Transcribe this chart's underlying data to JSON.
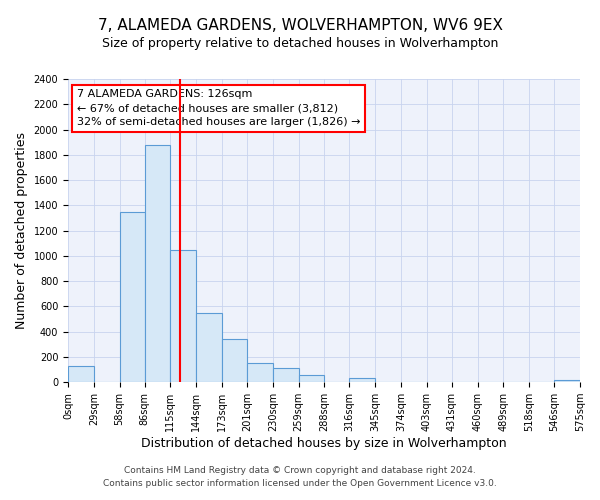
{
  "title": "7, ALAMEDA GARDENS, WOLVERHAMPTON, WV6 9EX",
  "subtitle": "Size of property relative to detached houses in Wolverhampton",
  "xlabel": "Distribution of detached houses by size in Wolverhampton",
  "ylabel": "Number of detached properties",
  "bin_edges": [
    0,
    29,
    58,
    86,
    115,
    144,
    173,
    201,
    230,
    259,
    288,
    316,
    345,
    374,
    403,
    431,
    460,
    489,
    518,
    546,
    575
  ],
  "bin_counts": [
    125,
    0,
    1350,
    1880,
    1050,
    550,
    340,
    155,
    110,
    60,
    0,
    30,
    0,
    0,
    0,
    0,
    0,
    0,
    0,
    20
  ],
  "bar_facecolor": "#d6e8f7",
  "bar_edgecolor": "#5b9bd5",
  "property_line_x": 126,
  "property_line_color": "red",
  "annotation_title": "7 ALAMEDA GARDENS: 126sqm",
  "annotation_line1": "← 67% of detached houses are smaller (3,812)",
  "annotation_line2": "32% of semi-detached houses are larger (1,826) →",
  "annotation_box_edgecolor": "red",
  "annotation_box_facecolor": "white",
  "tick_labels": [
    "0sqm",
    "29sqm",
    "58sqm",
    "86sqm",
    "115sqm",
    "144sqm",
    "173sqm",
    "201sqm",
    "230sqm",
    "259sqm",
    "288sqm",
    "316sqm",
    "345sqm",
    "374sqm",
    "403sqm",
    "431sqm",
    "460sqm",
    "489sqm",
    "518sqm",
    "546sqm",
    "575sqm"
  ],
  "ylim": [
    0,
    2400
  ],
  "yticks": [
    0,
    200,
    400,
    600,
    800,
    1000,
    1200,
    1400,
    1600,
    1800,
    2000,
    2200,
    2400
  ],
  "footer_line1": "Contains HM Land Registry data © Crown copyright and database right 2024.",
  "footer_line2": "Contains public sector information licensed under the Open Government Licence v3.0.",
  "background_color": "#eef2fb",
  "grid_color": "#c8d4ee",
  "title_fontsize": 11,
  "subtitle_fontsize": 9,
  "axis_label_fontsize": 9,
  "tick_fontsize": 7,
  "footer_fontsize": 6.5,
  "annotation_fontsize": 8
}
